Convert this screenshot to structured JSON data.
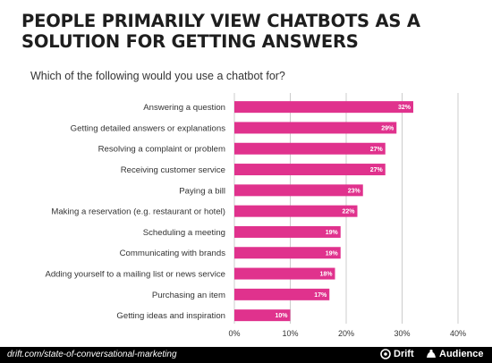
{
  "title": "PEOPLE PRIMARILY VIEW CHATBOTS AS A SOLUTION FOR GETTING ANSWERS",
  "subtitle": "Which of the following would you use a chatbot for?",
  "footer": {
    "source": "drift.com/state-of-conversational-marketing",
    "brand1": "Drift",
    "brand1_icon": "drift-logo-icon",
    "brand2": "Audience",
    "brand2_icon": "audience-logo-icon"
  },
  "colors": {
    "bar": "#e0328d",
    "grid": "#cccccc",
    "footer": "#000000"
  },
  "chart_data": {
    "type": "bar",
    "orientation": "horizontal",
    "categories": [
      "Answering a question",
      "Getting detailed answers or explanations",
      "Resolving a complaint or problem",
      "Receiving customer service",
      "Paying a bill",
      "Making a reservation (e.g. restaurant or hotel)",
      "Scheduling a meeting",
      "Communicating with brands",
      "Adding yourself to a mailing list or news service",
      "Purchasing an item",
      "Getting ideas and inspiration"
    ],
    "values": [
      32,
      29,
      27,
      27,
      23,
      22,
      19,
      19,
      18,
      17,
      10
    ],
    "value_labels": [
      "32%",
      "29%",
      "27%",
      "27%",
      "23%",
      "22%",
      "19%",
      "19%",
      "18%",
      "17%",
      "10%"
    ],
    "xlim": [
      0,
      40
    ],
    "xticks": [
      0,
      10,
      20,
      30,
      40
    ],
    "xtick_labels": [
      "0%",
      "10%",
      "20%",
      "30%",
      "40%"
    ],
    "grid": "vertical"
  }
}
